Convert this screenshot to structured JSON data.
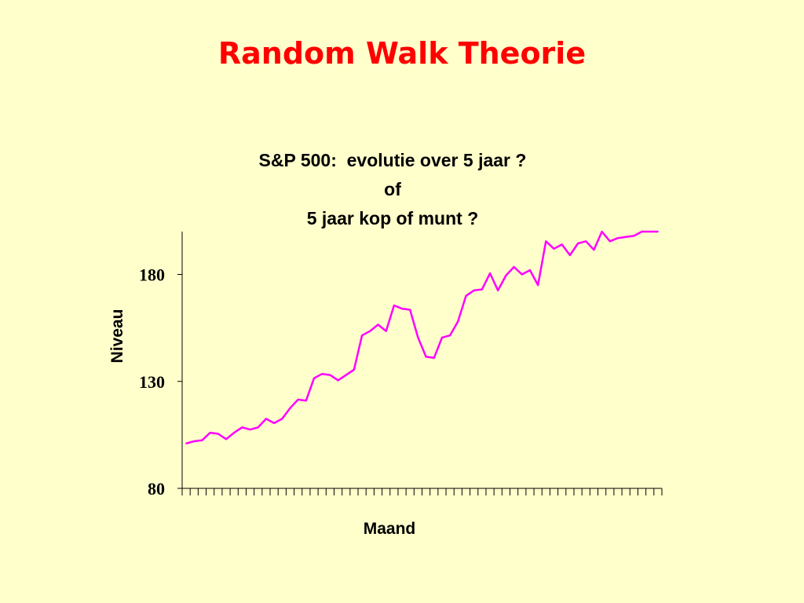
{
  "slide": {
    "title": "Random Walk Theorie"
  },
  "chart_data": {
    "type": "line",
    "title_lines": [
      "S&P 500:  evolutie over 5 jaar ?",
      "of",
      "5 jaar kop of munt ?"
    ],
    "xlabel": "Maand",
    "ylabel": "Niveau",
    "ylim": [
      80,
      200
    ],
    "yticks": [
      80,
      130,
      180
    ],
    "x_count": 60,
    "grid": false,
    "legend": "none",
    "line_color": "#ff00ff",
    "series": [
      {
        "values": [
          101,
          102,
          102.5,
          106,
          105.5,
          103,
          106,
          108.5,
          107.5,
          108.5,
          112.5,
          110.5,
          112.5,
          117.5,
          121.5,
          121,
          131.5,
          133.5,
          133,
          130.5,
          133,
          135.5,
          151.5,
          153.5,
          156.5,
          153.5,
          165.5,
          164,
          163.5,
          150.5,
          141.5,
          141,
          150.5,
          151.5,
          158,
          170,
          172.5,
          173,
          180.5,
          172.5,
          179.5,
          183.5,
          180,
          182,
          175,
          195.5,
          192,
          194,
          189,
          194.5,
          195.5,
          191.5,
          200,
          195.5,
          197,
          197.5,
          198,
          200,
          200,
          200
        ]
      }
    ]
  }
}
